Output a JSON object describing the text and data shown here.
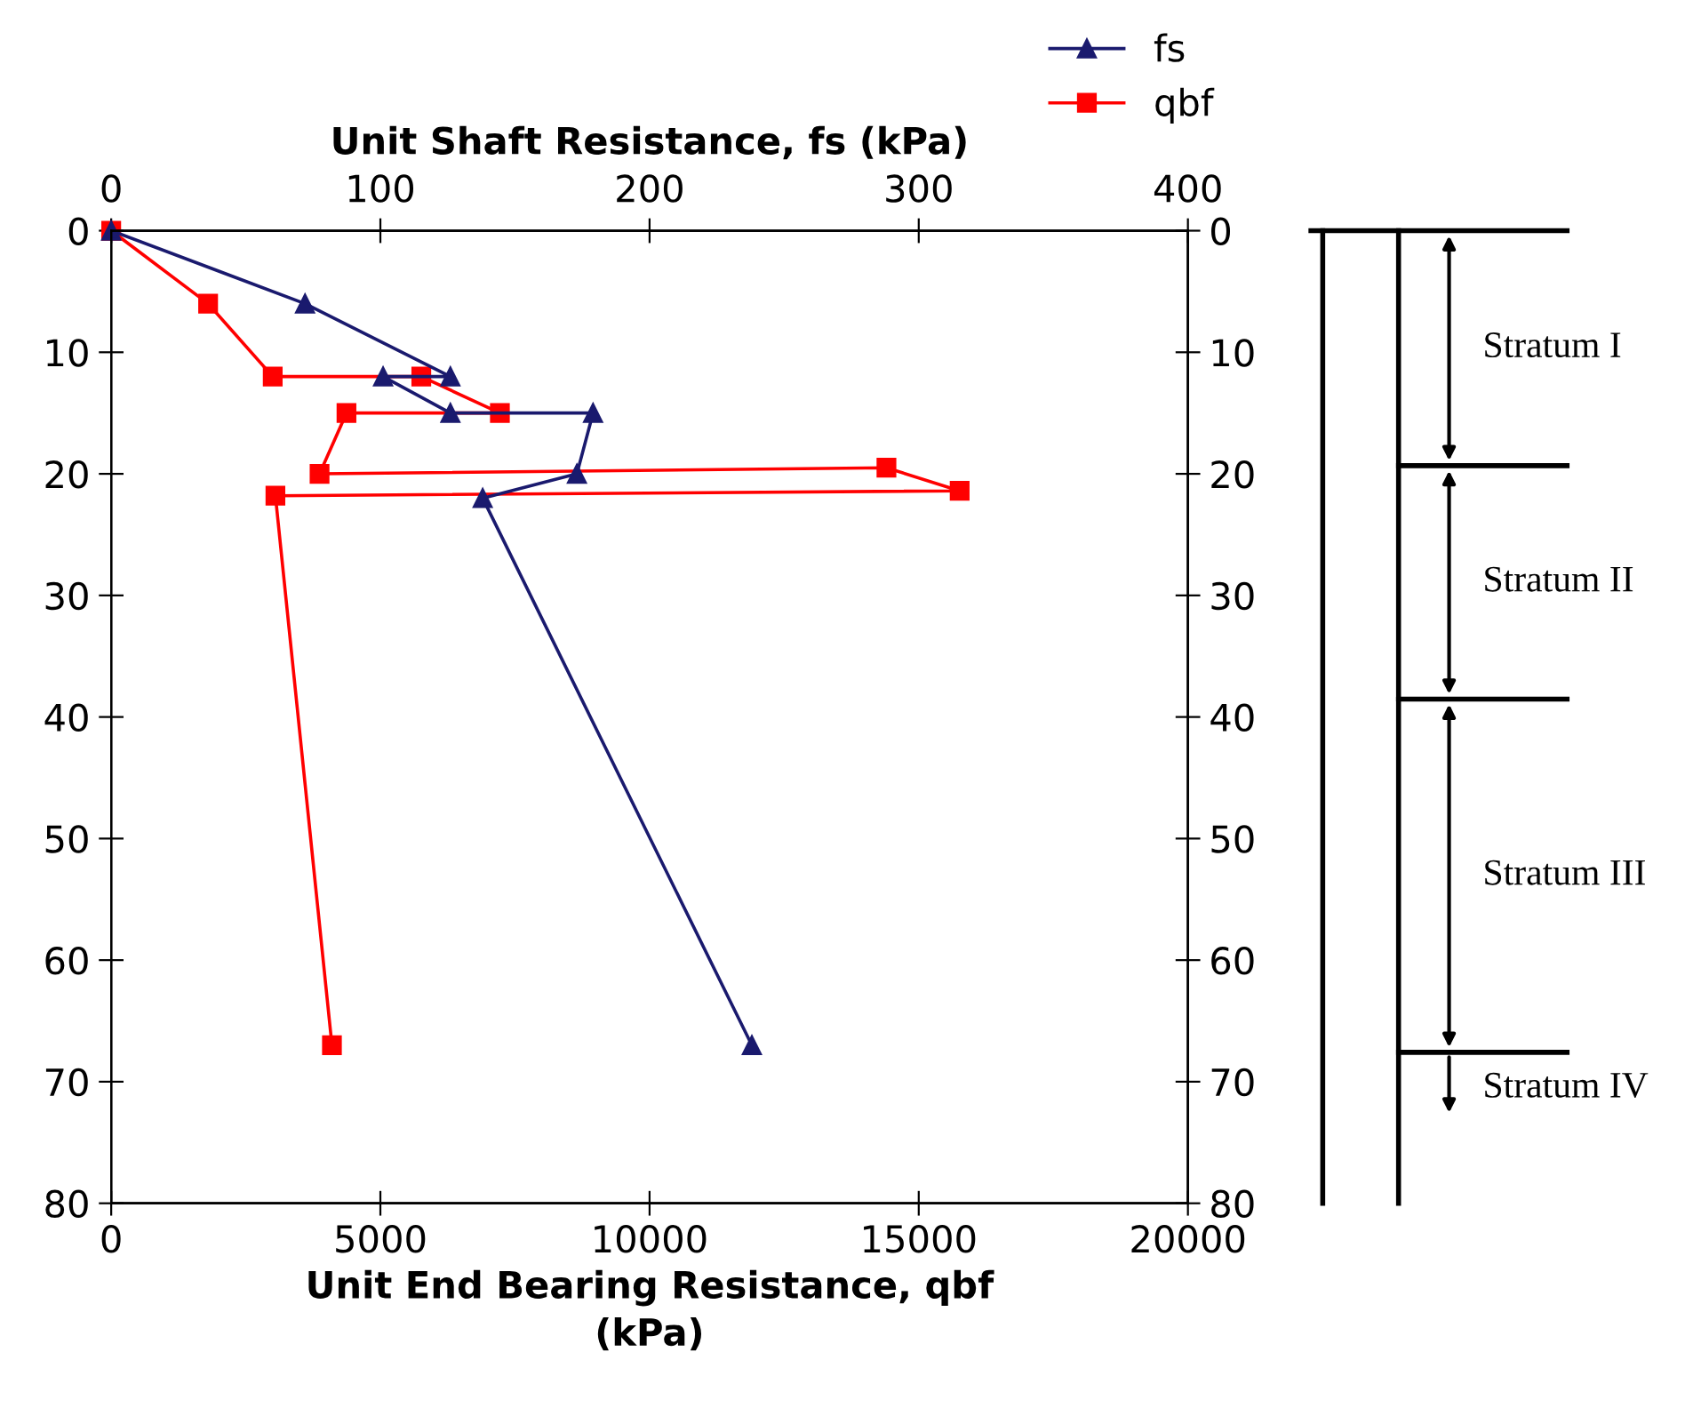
{
  "chart_data": {
    "type": "line",
    "xlabel": "Unit End Bearing Resistance, qbf\n(kPa)",
    "x2label": "Unit Shaft Resistance, fs (kPa)",
    "xlim": [
      0,
      20000
    ],
    "xticks": [
      0,
      5000,
      10000,
      15000,
      20000
    ],
    "x2lim": [
      0,
      400
    ],
    "x2ticks": [
      0,
      100,
      200,
      300,
      400
    ],
    "ylim": [
      80,
      0
    ],
    "yticks": [
      0,
      10,
      20,
      30,
      40,
      50,
      60,
      70,
      80
    ],
    "y2lim": [
      80,
      0
    ],
    "y2ticks": [
      0,
      10,
      20,
      30,
      40,
      50,
      60,
      70,
      80
    ],
    "grid": false,
    "legend": "top right",
    "line_style": "solid",
    "series": [
      {
        "name": "fs",
        "color": "#1a1a6e",
        "marker": "triangle",
        "axis": "x2",
        "x": [
          0,
          72,
          126,
          101,
          126,
          179,
          173,
          138,
          238
        ],
        "values": [
          0,
          6,
          12,
          12,
          15,
          15,
          20,
          22,
          67
        ]
      },
      {
        "name": "qbf",
        "color": "#ff0000",
        "marker": "square",
        "x": [
          0,
          1800,
          3000,
          5760,
          7220,
          4370,
          3870,
          14400,
          15760,
          3050,
          4100
        ],
        "values": [
          0,
          6,
          12,
          12,
          15,
          15,
          20,
          19.5,
          21.4,
          21.8,
          67
        ]
      }
    ],
    "annotations": [
      "Stratum I",
      "Stratum II",
      "Stratum III",
      "Stratum IV"
    ]
  }
}
